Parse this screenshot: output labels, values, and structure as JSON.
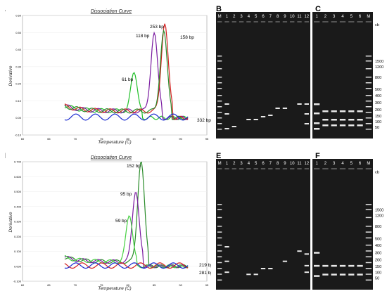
{
  "panels": {
    "A": "A",
    "B": "B",
    "C": "C",
    "D": "D",
    "E": "E",
    "F": "F"
  },
  "chart_data": [
    {
      "type": "line",
      "title": "Dissociation Curve",
      "xlabel": "Temperature (C)",
      "ylabel": "Derivative",
      "xlim": [
        60,
        95
      ],
      "ylim": [
        -0.1,
        0.6
      ],
      "xticks": [
        "60",
        "65",
        "70",
        "75",
        "80",
        "85",
        "90",
        "95"
      ],
      "yticks": [
        "-0.10",
        "0.00",
        "0.10",
        "0.20",
        "0.30",
        "0.40",
        "0.50",
        "0.60"
      ],
      "annotations": [
        "61 bp",
        "118 bp",
        "253 bp",
        "158 bp",
        "332 bp"
      ],
      "series": [
        {
          "color": "#22c02a",
          "peak_x": 81.2,
          "peak_y": 0.22
        },
        {
          "color": "#7a1aa0",
          "peak_x": 85.0,
          "peak_y": 0.46
        },
        {
          "color": "#d42020",
          "peak_x": 87.0,
          "peak_y": 0.52
        },
        {
          "color": "#2a8c2a",
          "peak_x": 86.8,
          "peak_y": 0.47
        },
        {
          "color": "#1a2ad0",
          "peak_x": 0,
          "peak_y": 0.0
        }
      ]
    },
    {
      "type": "line",
      "title": "Dissociation Curve",
      "xlabel": "Temperature (C)",
      "ylabel": "Derivative",
      "xlim": [
        60,
        95
      ],
      "ylim": [
        -0.1,
        0.7
      ],
      "xticks": [
        "60",
        "65",
        "70",
        "75",
        "80",
        "85",
        "90",
        "95"
      ],
      "yticks": [
        "-0.100",
        "0.000",
        "0.100",
        "0.200",
        "0.300",
        "0.400",
        "0.500",
        "0.600",
        "0.700"
      ],
      "annotations": [
        "152 bp",
        "95 bp",
        "59 bp",
        "219 bp",
        "281 bp"
      ],
      "series": [
        {
          "color": "#2a8c2a",
          "peak_x": 82.5,
          "peak_y": 0.68
        },
        {
          "color": "#7a1aa0",
          "peak_x": 81.5,
          "peak_y": 0.48
        },
        {
          "color": "#44d040",
          "peak_x": 80.3,
          "peak_y": 0.31
        },
        {
          "color": "#d42020",
          "peak_x": 0,
          "peak_y": 0.0
        },
        {
          "color": "#1a2ad0",
          "peak_x": 0,
          "peak_y": 0.0
        }
      ]
    }
  ],
  "gels": {
    "B": {
      "lanes": [
        "M",
        "1",
        "2",
        "3",
        "4",
        "5",
        "6",
        "7",
        "8",
        "9",
        "10",
        "11",
        "12"
      ]
    },
    "C": {
      "lanes": [
        "1",
        "2",
        "3",
        "4",
        "5",
        "6",
        "M"
      ],
      "ladder": [
        "cb",
        "1500",
        "1200",
        "800",
        "500",
        "400",
        "300",
        "200",
        "150",
        "100",
        "50"
      ]
    },
    "E": {
      "lanes": [
        "M",
        "1",
        "2",
        "3",
        "4",
        "5",
        "6",
        "7",
        "8",
        "9",
        "10",
        "11",
        "12"
      ]
    },
    "F": {
      "lanes": [
        "1",
        "2",
        "3",
        "4",
        "5",
        "6",
        "M"
      ],
      "ladder": [
        "cb",
        "1500",
        "1200",
        "800",
        "500",
        "400",
        "300",
        "200",
        "150",
        "100",
        "50"
      ]
    }
  }
}
